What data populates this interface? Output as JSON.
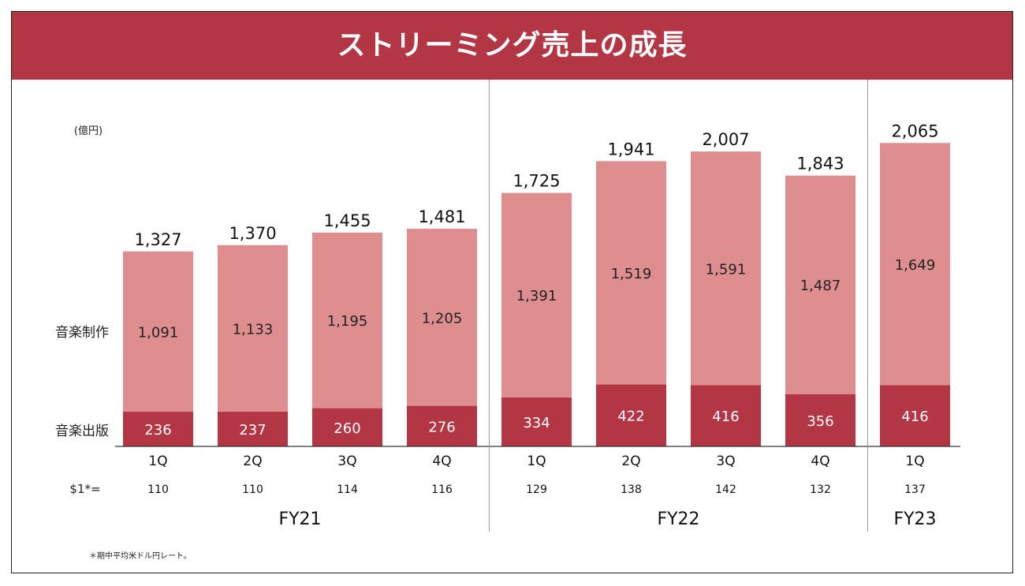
{
  "title": "ストリーミング売上の成長",
  "unit_label": "(億円)",
  "footnote": "＊期中平均米ドル円レート。",
  "fx_row_label": "$1*=",
  "colors": {
    "banner": "#b23644",
    "production": "#de8e8e",
    "publishing": "#b23644"
  },
  "chart_data": {
    "type": "bar",
    "stacked": true,
    "categories": [
      "1Q",
      "2Q",
      "3Q",
      "4Q",
      "1Q",
      "2Q",
      "3Q",
      "4Q",
      "1Q"
    ],
    "groups": [
      {
        "label": "FY21",
        "count": 4
      },
      {
        "label": "FY22",
        "count": 4
      },
      {
        "label": "FY23",
        "count": 1
      }
    ],
    "series": [
      {
        "name": "音楽出版",
        "values": [
          236,
          237,
          260,
          276,
          334,
          422,
          416,
          356,
          416
        ]
      },
      {
        "name": "音楽制作",
        "values": [
          1091,
          1133,
          1195,
          1205,
          1391,
          1519,
          1591,
          1487,
          1649
        ]
      }
    ],
    "totals": [
      1327,
      1370,
      1455,
      1481,
      1725,
      1941,
      2007,
      1843,
      2065
    ],
    "fx_rates": [
      110,
      110,
      114,
      116,
      129,
      138,
      142,
      132,
      137
    ],
    "ylim": [
      0,
      2400
    ],
    "grid": false
  }
}
